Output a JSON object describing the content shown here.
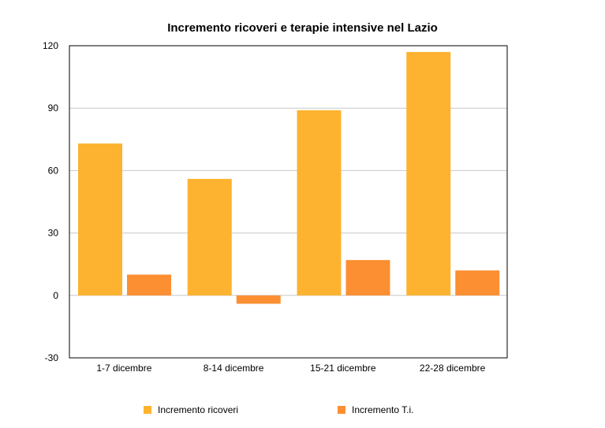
{
  "chart_data": {
    "type": "bar",
    "title": "Incremento ricoveri e terapie intensive nel Lazio",
    "xlabel": "",
    "ylabel": "",
    "categories": [
      "1-7 dicembre",
      "8-14 dicembre",
      "15-21 dicembre",
      "22-28 dicembre"
    ],
    "series": [
      {
        "name": "Incremento ricoveri",
        "values": [
          73,
          56,
          89,
          117
        ],
        "color": "#FDB32F"
      },
      {
        "name": "Incremento T.i.",
        "values": [
          10,
          -4,
          17,
          12
        ],
        "color": "#FC8F32"
      }
    ],
    "ylim": [
      -30,
      120
    ],
    "yticks": [
      -30,
      0,
      30,
      60,
      90,
      120
    ],
    "grid": true,
    "legend_position": "bottom"
  }
}
